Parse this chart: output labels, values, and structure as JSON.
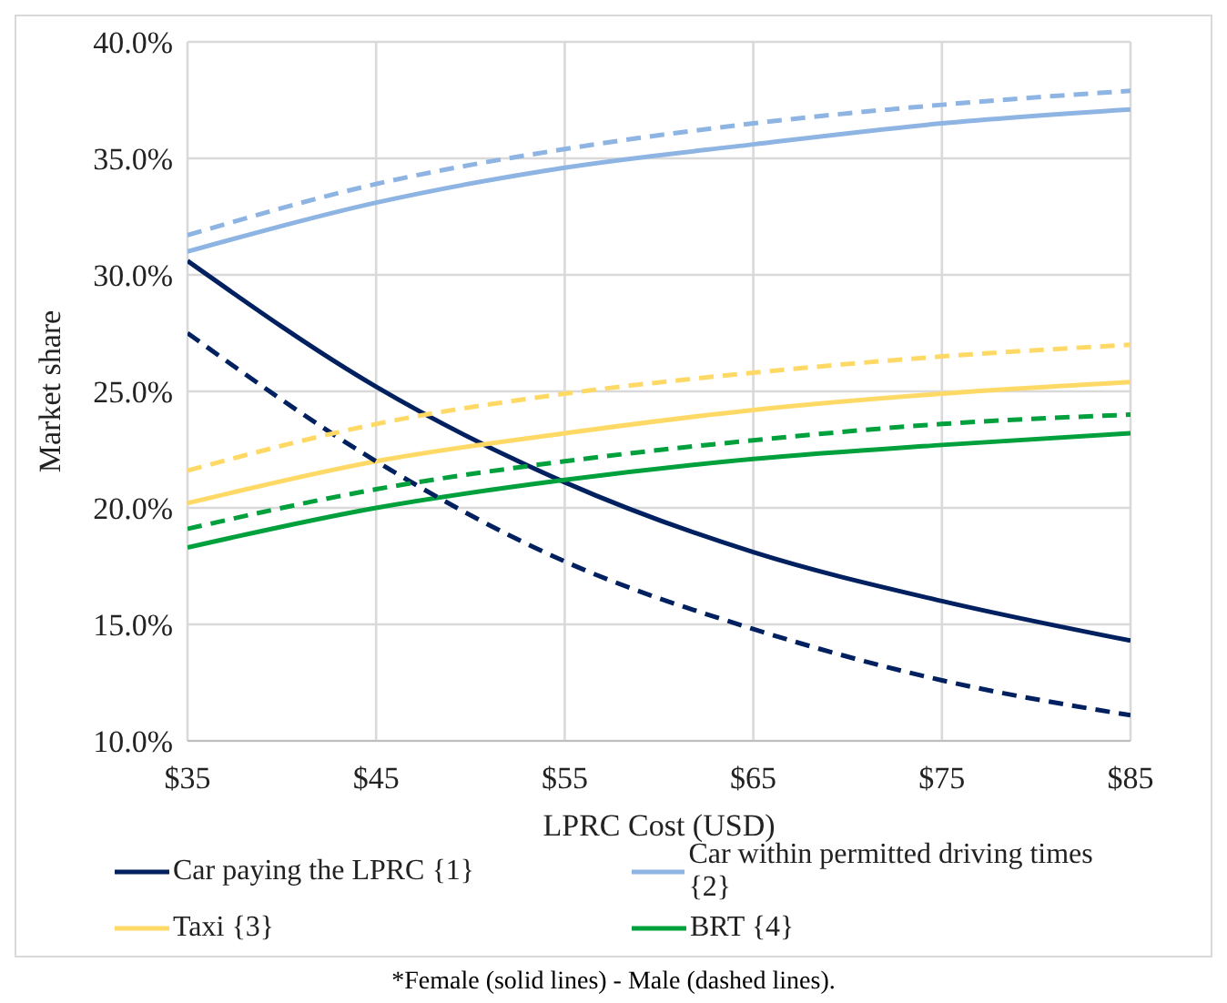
{
  "chart_data": {
    "type": "line",
    "xlabel": "LPRC Cost (USD)",
    "ylabel": "Market share",
    "x": [
      35,
      45,
      55,
      65,
      75,
      85
    ],
    "xlim": [
      35,
      85
    ],
    "xticks": [
      {
        "value": 35,
        "label": "$35"
      },
      {
        "value": 45,
        "label": "$45"
      },
      {
        "value": 55,
        "label": "$55"
      },
      {
        "value": 65,
        "label": "$65"
      },
      {
        "value": 75,
        "label": "$75"
      },
      {
        "value": 85,
        "label": "$85"
      }
    ],
    "ylim": [
      10,
      40
    ],
    "yticks": [
      {
        "value": 10,
        "label": "10.0%"
      },
      {
        "value": 15,
        "label": "15.0%"
      },
      {
        "value": 20,
        "label": "20.0%"
      },
      {
        "value": 25,
        "label": "25.0%"
      },
      {
        "value": 30,
        "label": "30.0%"
      },
      {
        "value": 35,
        "label": "35.0%"
      },
      {
        "value": 40,
        "label": "40.0%"
      }
    ],
    "grid": true,
    "legend": "bottom",
    "marker": "none",
    "series": [
      {
        "name": "Car paying the LPRC {1}",
        "color": "#002060",
        "line_style": "solid",
        "values": [
          30.6,
          25.2,
          21.1,
          18.1,
          16.0,
          14.3
        ]
      },
      {
        "name": "Car within permitted driving times {2}",
        "color": "#8db4e2",
        "line_style": "solid",
        "values": [
          31.0,
          33.1,
          34.6,
          35.6,
          36.5,
          37.1
        ]
      },
      {
        "name": "Taxi {3}",
        "color": "#ffd966",
        "line_style": "solid",
        "values": [
          20.2,
          22.0,
          23.2,
          24.2,
          24.9,
          25.4
        ]
      },
      {
        "name": "BRT {4}",
        "color": "#00a03c",
        "line_style": "solid",
        "values": [
          18.3,
          20.0,
          21.2,
          22.1,
          22.7,
          23.2
        ]
      },
      {
        "color": "#002060",
        "line_style": "dashed",
        "values": [
          27.5,
          22.0,
          17.7,
          14.8,
          12.6,
          11.1
        ]
      },
      {
        "color": "#8db4e2",
        "line_style": "dashed",
        "values": [
          31.7,
          33.9,
          35.4,
          36.5,
          37.3,
          37.9
        ]
      },
      {
        "color": "#ffd966",
        "line_style": "dashed",
        "values": [
          21.6,
          23.6,
          24.9,
          25.8,
          26.5,
          27.0
        ]
      },
      {
        "color": "#00a03c",
        "line_style": "dashed",
        "values": [
          19.1,
          20.8,
          22.0,
          22.9,
          23.6,
          24.0
        ]
      }
    ],
    "annotations": [
      "*Female (solid lines) - Male (dashed lines)."
    ]
  }
}
